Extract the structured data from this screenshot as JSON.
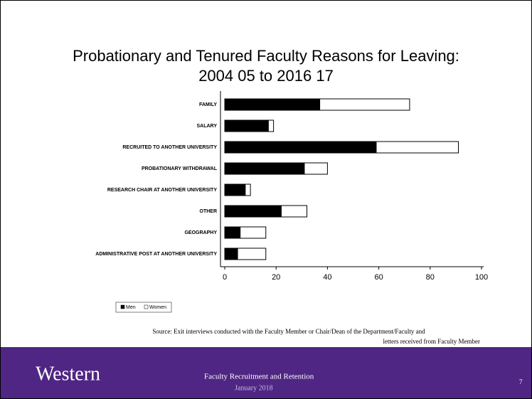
{
  "chart_data": {
    "type": "stacked_hbar",
    "title": "Probationary and Tenured Faculty Reasons for Leaving:",
    "subtitle": "2004 05 to 2016 17",
    "categories": [
      "FAMILY",
      "SALARY",
      "RECRUITED TO ANOTHER UNIVERSITY",
      "PROBATIONARY WITHDRAWAL",
      "RESEARCH CHAIR AT ANOTHER UNIVERSITY",
      "OTHER",
      "GEOGRAPHY",
      "ADMINISTRATIVE POST AT ANOTHER UNIVERSITY"
    ],
    "series": [
      {
        "name": "Men",
        "color": "#000000",
        "values": [
          37,
          17,
          59,
          31,
          8,
          22,
          6,
          5
        ]
      },
      {
        "name": "Women",
        "color": "#ffffff",
        "values": [
          35,
          2,
          32,
          9,
          2,
          10,
          10,
          11
        ]
      }
    ],
    "xlim": [
      0,
      100
    ],
    "xticks": [
      0,
      20,
      40,
      60,
      80,
      100
    ],
    "legend": "bottom"
  },
  "source": [
    "Source:  Exit interviews conducted with the Faculty Member or Chair/Dean of the Department/Faculty and",
    "letters received from Faculty Member"
  ],
  "footer": {
    "logo": "Western",
    "title": "Faculty Recruitment and Retention",
    "date": "January 2018",
    "page": "7"
  }
}
